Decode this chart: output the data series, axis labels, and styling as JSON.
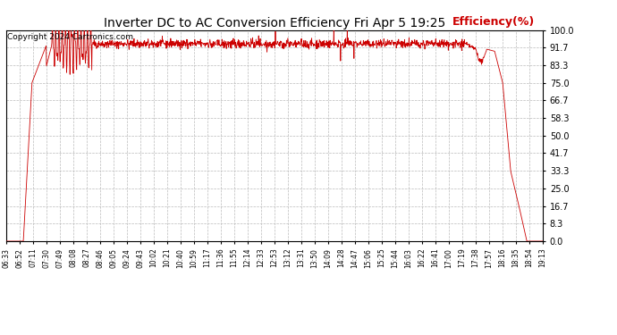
{
  "title": "Inverter DC to AC Conversion Efficiency Fri Apr 5 19:25",
  "ylabel": "Efficiency(%)",
  "copyright": "Copyright 2024 Cartronics.com",
  "bg_color": "#ffffff",
  "line_color": "#cc0000",
  "grid_color": "#bbbbbb",
  "ylabel_color": "#cc0000",
  "title_color": "#000000",
  "yticks": [
    0.0,
    8.3,
    16.7,
    25.0,
    33.3,
    41.7,
    50.0,
    58.3,
    66.7,
    75.0,
    83.3,
    91.7,
    100.0
  ],
  "xtick_labels": [
    "06:33",
    "06:52",
    "07:11",
    "07:30",
    "07:49",
    "08:08",
    "08:27",
    "08:46",
    "09:05",
    "09:24",
    "09:43",
    "10:02",
    "10:21",
    "10:40",
    "10:59",
    "11:17",
    "11:36",
    "11:55",
    "12:14",
    "12:33",
    "12:53",
    "13:12",
    "13:31",
    "13:50",
    "14:09",
    "14:28",
    "14:47",
    "15:06",
    "15:25",
    "15:44",
    "16:03",
    "16:22",
    "16:41",
    "17:00",
    "17:19",
    "17:38",
    "17:57",
    "18:16",
    "18:35",
    "18:54",
    "19:13"
  ],
  "ylim": [
    0.0,
    100.0
  ],
  "figsize": [
    6.9,
    3.75
  ],
  "dpi": 100
}
